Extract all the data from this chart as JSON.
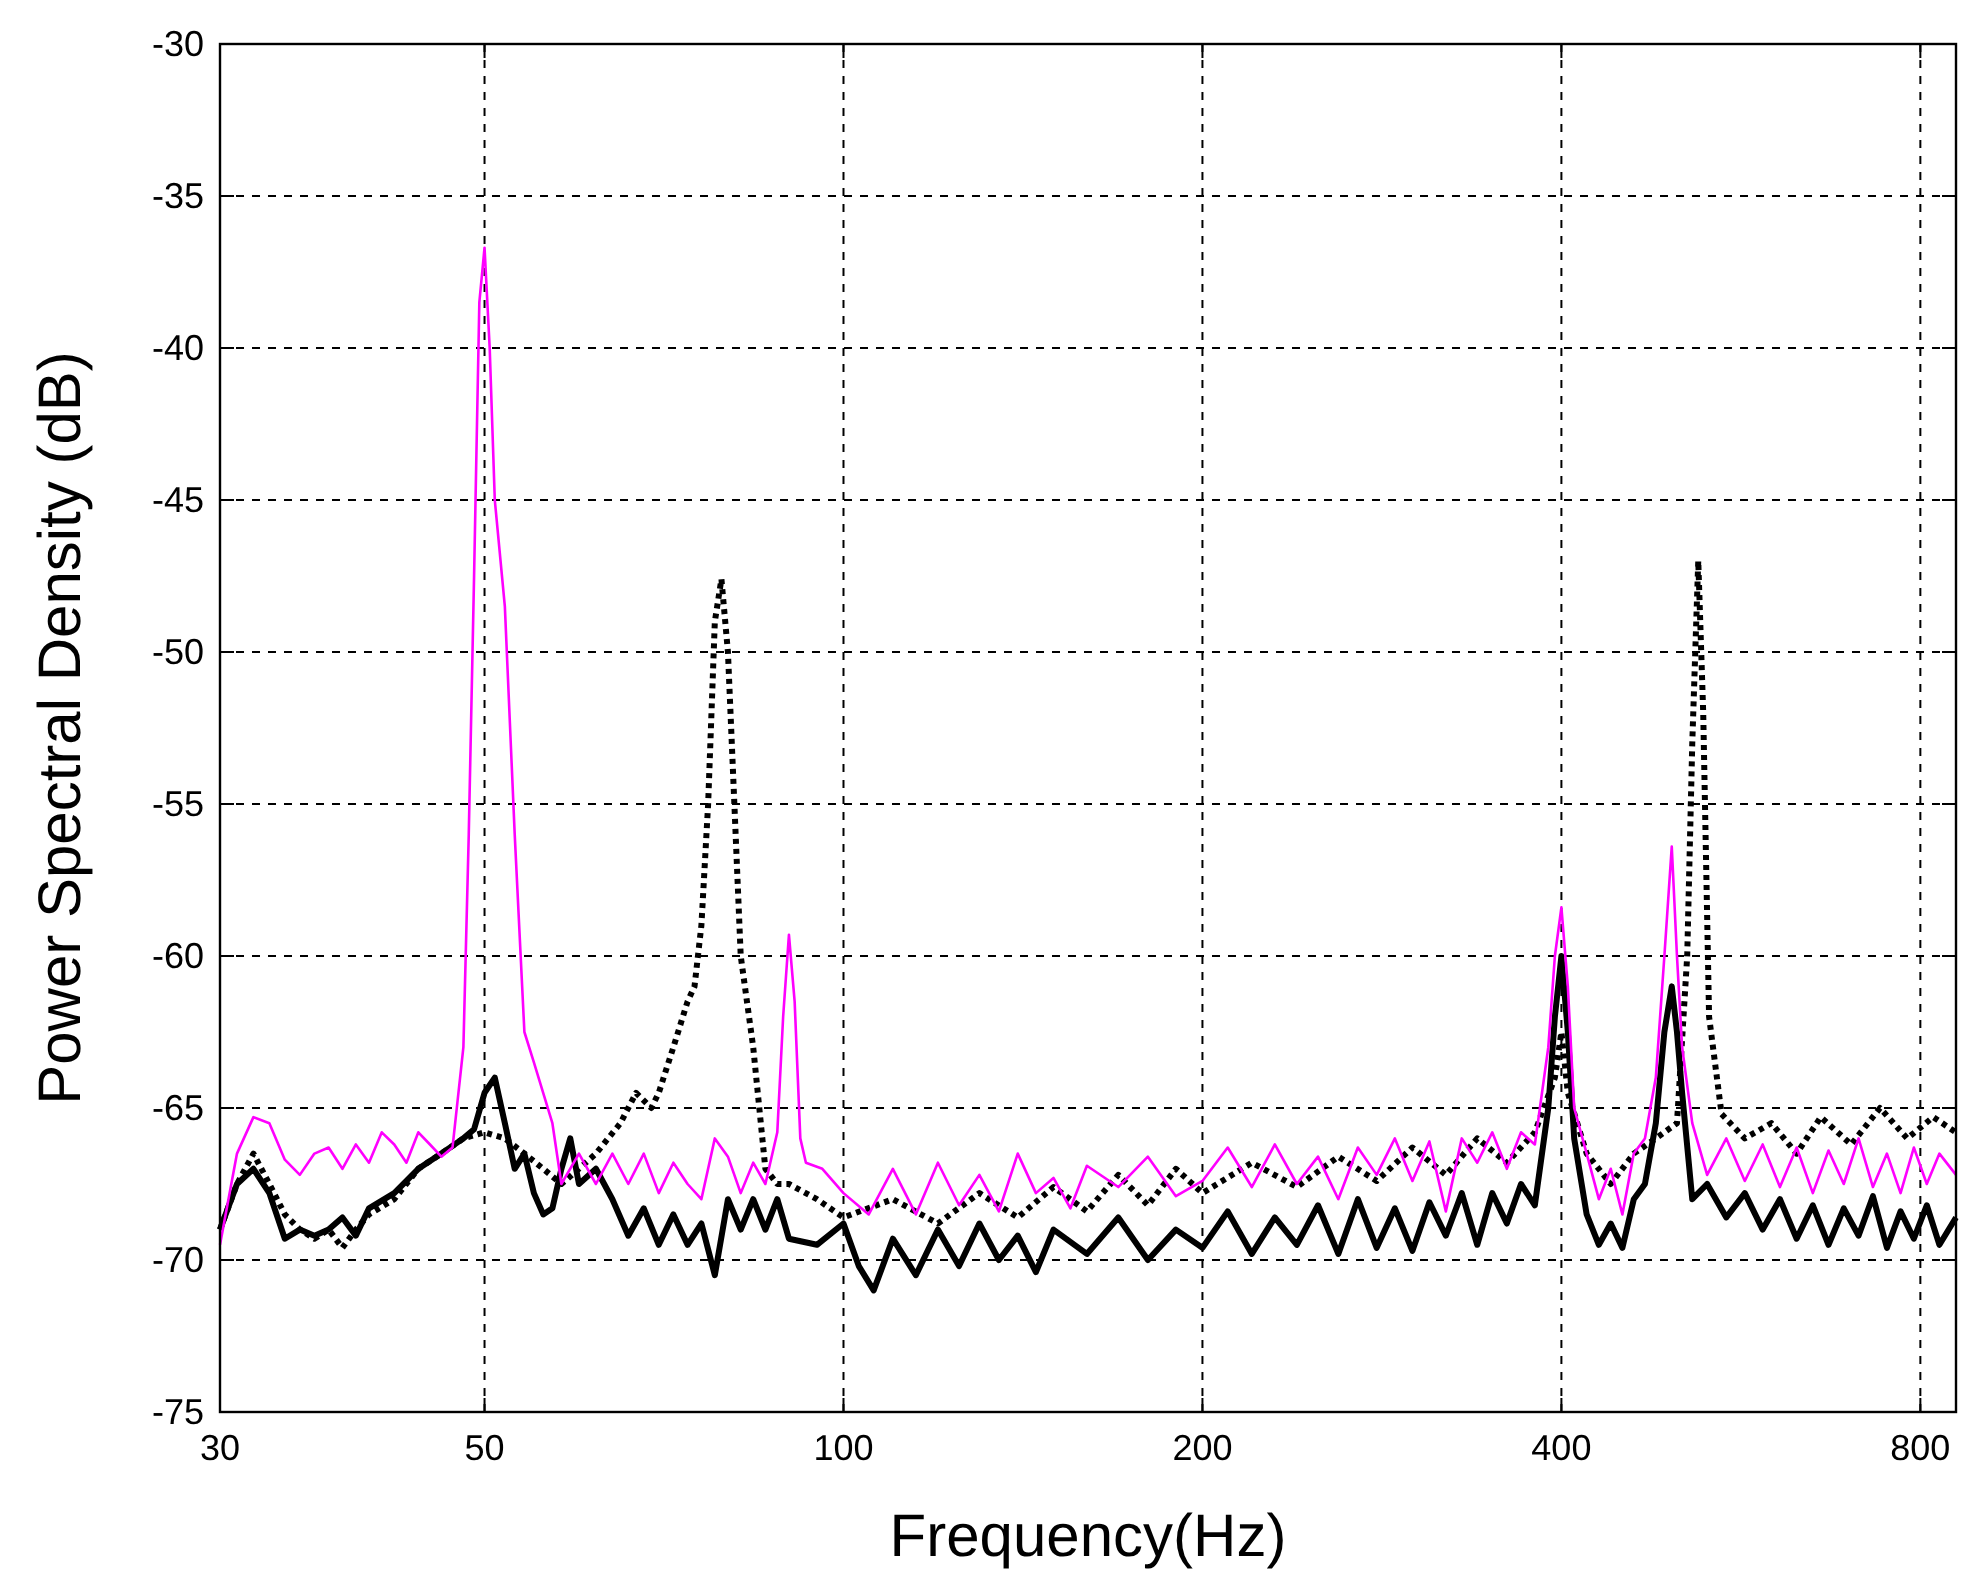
{
  "chart_data": {
    "type": "line",
    "xlabel": "Frequency(Hz)",
    "ylabel": "Power Spectral Density (dB)",
    "log": "x",
    "grid": true,
    "xlim": [
      30,
      857
    ],
    "xticks": [
      30,
      50,
      100,
      200,
      400,
      800
    ],
    "ylim": [
      -75,
      -30
    ],
    "yticks": [
      -75,
      -70,
      -65,
      -60,
      -55,
      -50,
      -45,
      -40,
      -35,
      -30
    ],
    "series": [
      {
        "color": "#000000",
        "line_style": "dotted",
        "x": [
          30,
          31,
          32,
          33,
          34,
          35,
          36,
          37,
          38,
          39,
          40,
          42,
          44,
          46,
          48,
          50,
          52,
          54,
          56,
          58,
          60,
          62,
          65,
          67,
          69,
          70,
          72,
          74,
          75,
          76,
          77,
          78,
          79,
          80,
          81,
          82,
          84,
          86,
          88,
          90,
          95,
          100,
          110,
          120,
          130,
          140,
          150,
          160,
          170,
          180,
          190,
          200,
          220,
          240,
          260,
          280,
          300,
          320,
          340,
          360,
          380,
          395,
          400,
          405,
          420,
          440,
          460,
          480,
          500,
          510,
          515,
          521,
          526,
          532,
          545,
          570,
          600,
          630,
          660,
          700,
          740,
          780,
          820,
          857
        ],
        "values": [
          -69,
          -67.5,
          -66.5,
          -67.5,
          -68.5,
          -69,
          -69.3,
          -69,
          -69.6,
          -69,
          -68.5,
          -68,
          -67,
          -66.5,
          -66,
          -65.8,
          -66,
          -66.5,
          -67,
          -67.5,
          -67,
          -66.5,
          -65.5,
          -64.5,
          -65,
          -64.5,
          -63,
          -61.5,
          -61,
          -59,
          -55,
          -49,
          -47.6,
          -50,
          -55,
          -60,
          -63,
          -67,
          -67.5,
          -67.5,
          -68,
          -68.6,
          -68,
          -68.8,
          -67.8,
          -68.6,
          -67.6,
          -68.4,
          -67.2,
          -68.2,
          -67,
          -67.8,
          -66.8,
          -67.6,
          -66.6,
          -67.4,
          -66.3,
          -67.2,
          -66,
          -66.8,
          -65.8,
          -64,
          -62.5,
          -64.5,
          -66.5,
          -67.5,
          -66.5,
          -66,
          -65.5,
          -60,
          -53,
          -47,
          -52,
          -62,
          -65.2,
          -66,
          -65.5,
          -66.5,
          -65.3,
          -66.2,
          -65,
          -66,
          -65.3,
          -65.8
        ]
      },
      {
        "color": "#000000",
        "line_style": "solid",
        "x": [
          30,
          31,
          32,
          33,
          34,
          35,
          36,
          37,
          38,
          39,
          40,
          42,
          44,
          46,
          48,
          49,
          50,
          51,
          52,
          53,
          54,
          55,
          56,
          57,
          58,
          59,
          60,
          62,
          64,
          66,
          68,
          70,
          72,
          74,
          76,
          78,
          80,
          82,
          84,
          86,
          88,
          90,
          95,
          100,
          103,
          106,
          110,
          115,
          120,
          125,
          130,
          135,
          140,
          145,
          150,
          160,
          170,
          180,
          190,
          200,
          210,
          220,
          230,
          240,
          250,
          260,
          270,
          280,
          290,
          300,
          310,
          320,
          330,
          340,
          350,
          360,
          370,
          380,
          390,
          395,
          400,
          405,
          410,
          420,
          430,
          440,
          450,
          460,
          470,
          480,
          488,
          495,
          500,
          505,
          515,
          530,
          550,
          570,
          590,
          610,
          630,
          650,
          670,
          690,
          710,
          730,
          750,
          770,
          790,
          810,
          830,
          857
        ],
        "values": [
          -69,
          -67.5,
          -67,
          -67.8,
          -69.3,
          -69,
          -69.2,
          -69,
          -68.6,
          -69.2,
          -68.3,
          -67.8,
          -67,
          -66.5,
          -66,
          -65.7,
          -64.5,
          -64,
          -65.5,
          -67,
          -66.5,
          -67.8,
          -68.5,
          -68.3,
          -67,
          -66,
          -67.5,
          -67,
          -68,
          -69.2,
          -68.3,
          -69.5,
          -68.5,
          -69.5,
          -68.8,
          -70.5,
          -68,
          -69,
          -68,
          -69,
          -68,
          -69.3,
          -69.5,
          -68.8,
          -70.2,
          -71,
          -69.3,
          -70.5,
          -69,
          -70.2,
          -68.8,
          -70,
          -69.2,
          -70.4,
          -69,
          -69.8,
          -68.6,
          -70,
          -69,
          -69.6,
          -68.4,
          -69.8,
          -68.6,
          -69.5,
          -68.2,
          -69.8,
          -68,
          -69.6,
          -68.3,
          -69.7,
          -68.1,
          -69.2,
          -67.8,
          -69.5,
          -67.8,
          -68.8,
          -67.5,
          -68.2,
          -65,
          -62,
          -60,
          -62.5,
          -66,
          -68.5,
          -69.5,
          -68.8,
          -69.6,
          -68,
          -67.5,
          -65.5,
          -62.5,
          -61,
          -62.5,
          -64.5,
          -68,
          -67.5,
          -68.6,
          -67.8,
          -69,
          -68,
          -69.3,
          -68.2,
          -69.5,
          -68.3,
          -69.2,
          -67.9,
          -69.6,
          -68.4,
          -69.3,
          -68.2,
          -69.5,
          -68.6
        ]
      },
      {
        "color": "#ff00ff",
        "line_style": "solid",
        "x": [
          30,
          31,
          32,
          33,
          34,
          35,
          36,
          37,
          38,
          39,
          40,
          41,
          42,
          43,
          44,
          45,
          46,
          47,
          48,
          48.5,
          49,
          49.5,
          50,
          50.5,
          51,
          52,
          53,
          54,
          55,
          57,
          58,
          60,
          62,
          64,
          66,
          68,
          70,
          72,
          74,
          76,
          78,
          80,
          82,
          84,
          86,
          88,
          89,
          90,
          91,
          92,
          93,
          96,
          100,
          105,
          110,
          115,
          120,
          125,
          130,
          135,
          140,
          145,
          150,
          155,
          160,
          170,
          180,
          190,
          200,
          210,
          220,
          230,
          240,
          250,
          260,
          270,
          280,
          290,
          300,
          310,
          320,
          330,
          340,
          350,
          360,
          370,
          380,
          390,
          395,
          400,
          405,
          410,
          420,
          430,
          440,
          450,
          460,
          470,
          480,
          488,
          495,
          500,
          505,
          515,
          530,
          550,
          570,
          590,
          610,
          630,
          650,
          670,
          690,
          710,
          730,
          750,
          770,
          790,
          810,
          830,
          857
        ],
        "values": [
          -69.5,
          -66.5,
          -65.3,
          -65.5,
          -66.7,
          -67.2,
          -66.5,
          -66.3,
          -67,
          -66.2,
          -66.8,
          -65.8,
          -66.2,
          -66.8,
          -65.8,
          -66.2,
          -66.6,
          -66.3,
          -63,
          -56,
          -47.5,
          -38.5,
          -36.7,
          -40,
          -45,
          -48.5,
          -56,
          -62.5,
          -63.5,
          -65.5,
          -67.5,
          -66.5,
          -67.5,
          -66.5,
          -67.5,
          -66.5,
          -67.8,
          -66.8,
          -67.5,
          -68,
          -66,
          -66.6,
          -67.8,
          -66.8,
          -67.5,
          -65.8,
          -62,
          -59.3,
          -61.5,
          -66,
          -66.8,
          -67,
          -67.8,
          -68.5,
          -67,
          -68.5,
          -66.8,
          -68.2,
          -67.2,
          -68.4,
          -66.5,
          -67.8,
          -67.3,
          -68.3,
          -66.9,
          -67.6,
          -66.6,
          -67.9,
          -67.4,
          -66.3,
          -67.6,
          -66.2,
          -67.5,
          -66.6,
          -68,
          -66.3,
          -67.2,
          -66,
          -67.4,
          -66.1,
          -68.4,
          -66,
          -66.8,
          -65.8,
          -67,
          -65.8,
          -66.2,
          -63,
          -60,
          -58.4,
          -61,
          -65,
          -66.5,
          -68,
          -67,
          -68.5,
          -66.5,
          -66,
          -64,
          -60,
          -56.4,
          -60,
          -63,
          -65.5,
          -67.2,
          -66,
          -67.4,
          -66.2,
          -67.6,
          -66.3,
          -67.8,
          -66.4,
          -67.5,
          -66,
          -67.6,
          -66.5,
          -67.8,
          -66.3,
          -67.5,
          -66.5,
          -67.2
        ]
      }
    ]
  }
}
